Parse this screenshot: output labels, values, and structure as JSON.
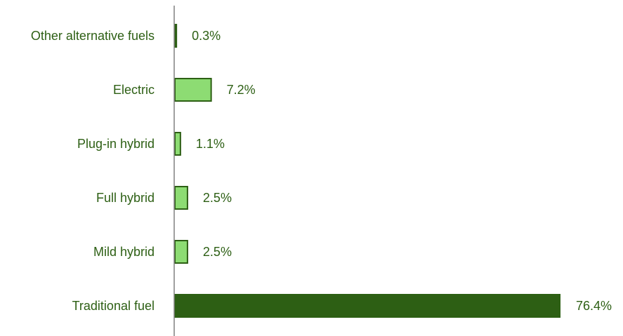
{
  "chart_data": {
    "type": "bar",
    "orientation": "horizontal",
    "title": "",
    "xlabel": "",
    "ylabel": "",
    "xlim": [
      0,
      80
    ],
    "grid": false,
    "legend": "none",
    "categories": [
      "Other alternative fuels",
      "Electric",
      "Plug-in hybrid",
      "Full hybrid",
      "Mild hybrid",
      "Traditional fuel"
    ],
    "values": [
      0.3,
      7.2,
      1.1,
      2.5,
      2.5,
      76.4
    ],
    "value_labels": [
      "0.3%",
      "7.2%",
      "1.1%",
      "2.5%",
      "2.5%",
      "76.4%"
    ],
    "bar_fill_colors": [
      "#2d5f14",
      "#8ddc73",
      "#8ddc73",
      "#8ddc73",
      "#8ddc73",
      "#2d5f14"
    ],
    "bar_outline_color": "#2d5f14",
    "text_color": "#2d5f14",
    "axis_color": "#808080"
  }
}
